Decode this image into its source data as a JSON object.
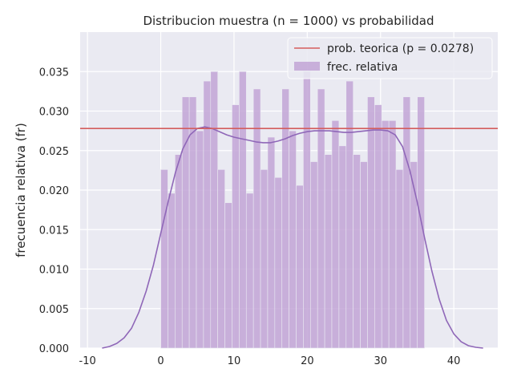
{
  "chart_data": {
    "type": "bar",
    "title": "Distribucion muestra (n = 1000) vs probabilidad",
    "xlabel": "",
    "ylabel": "frecuencia relativa (fr)",
    "xlim": [
      -11,
      46
    ],
    "ylim": [
      0,
      0.04
    ],
    "grid": true,
    "legend_placement": "top-right",
    "xticks": [
      -10,
      0,
      10,
      20,
      30,
      40
    ],
    "yticks": [
      0.0,
      0.005,
      0.01,
      0.015,
      0.02,
      0.025,
      0.03,
      0.035
    ],
    "histogram": {
      "name": "frec. relativa",
      "color": "#c2a5d6",
      "bin_start": 0,
      "bin_width": 0.973,
      "values": [
        0.0226,
        0.0196,
        0.0245,
        0.0318,
        0.0318,
        0.0275,
        0.0338,
        0.035,
        0.0226,
        0.0184,
        0.0308,
        0.035,
        0.0196,
        0.0328,
        0.0226,
        0.0267,
        0.0216,
        0.0328,
        0.0275,
        0.0206,
        0.035,
        0.0236,
        0.0328,
        0.0245,
        0.0288,
        0.0256,
        0.0338,
        0.0245,
        0.0236,
        0.0318,
        0.0308,
        0.0288,
        0.0288,
        0.0226,
        0.0318,
        0.0236,
        0.0318
      ]
    },
    "reference_line": {
      "name": "prob. teorica (p = 0.0278)",
      "value": 0.0278,
      "color": "#d45d5d"
    },
    "kde": {
      "color": "#8f67b8",
      "x": [
        -8,
        -7,
        -6,
        -5,
        -4,
        -3,
        -2,
        -1,
        0,
        1,
        2,
        3,
        4,
        5,
        6,
        7,
        8,
        9,
        10,
        11,
        12,
        13,
        14,
        15,
        16,
        17,
        18,
        19,
        20,
        21,
        22,
        23,
        24,
        25,
        26,
        27,
        28,
        29,
        30,
        31,
        32,
        33,
        34,
        35,
        36,
        37,
        38,
        39,
        40,
        41,
        42,
        43,
        44
      ],
      "y": [
        0.0,
        0.0002,
        0.0006,
        0.0013,
        0.0025,
        0.0045,
        0.0072,
        0.0105,
        0.0145,
        0.0185,
        0.0222,
        0.0252,
        0.027,
        0.0278,
        0.028,
        0.0278,
        0.0274,
        0.027,
        0.0267,
        0.0265,
        0.0263,
        0.0261,
        0.026,
        0.026,
        0.0262,
        0.0265,
        0.0269,
        0.0272,
        0.0274,
        0.0275,
        0.0275,
        0.0275,
        0.0274,
        0.0273,
        0.0273,
        0.0274,
        0.0275,
        0.0276,
        0.0276,
        0.0275,
        0.027,
        0.0255,
        0.0225,
        0.0185,
        0.014,
        0.0098,
        0.0062,
        0.0035,
        0.0018,
        0.0008,
        0.0003,
        0.0001,
        0.0
      ]
    }
  }
}
